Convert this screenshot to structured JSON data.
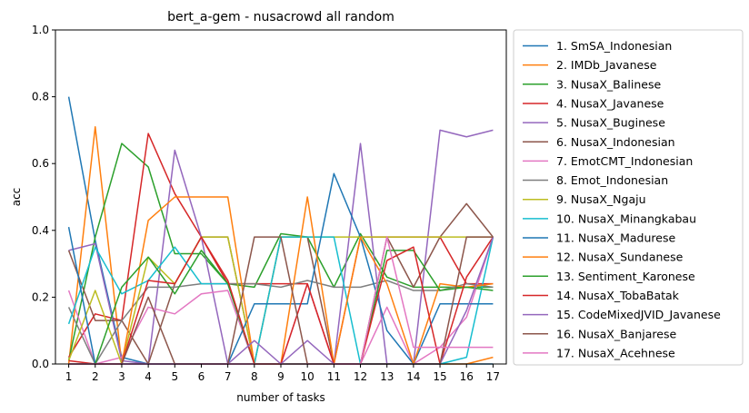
{
  "chart_data": {
    "type": "line",
    "title": "bert_a-gem - nusacrowd all random",
    "xlabel": "number of tasks",
    "ylabel": "acc",
    "x": [
      1,
      2,
      3,
      4,
      5,
      6,
      7,
      8,
      9,
      10,
      11,
      12,
      13,
      14,
      15,
      16,
      17
    ],
    "xlim": [
      0.5,
      17.5
    ],
    "ylim": [
      0,
      1
    ],
    "yticks": [
      "0.0",
      "0.2",
      "0.4",
      "0.6",
      "0.8",
      "1.0"
    ],
    "grid": false,
    "legend_position": "outside-right",
    "series": [
      {
        "name": "1. SmSA_Indonesian",
        "color": "#1f77b4",
        "values": [
          0.8,
          0.37,
          0.02,
          0.0,
          0.0,
          0.0,
          0.0,
          0.0,
          0.0,
          0.0,
          0.0,
          0.0,
          0.0,
          0.0,
          0.0,
          0.0,
          0.0
        ]
      },
      {
        "name": "2. IMDb_Javanese",
        "color": "#ff7f0e",
        "values": [
          0.0,
          0.71,
          0.0,
          0.0,
          0.0,
          0.0,
          0.0,
          0.0,
          0.0,
          0.0,
          0.0,
          0.0,
          0.0,
          0.0,
          0.0,
          0.0,
          0.02
        ]
      },
      {
        "name": "3. NusaX_Balinese",
        "color": "#2ca02c",
        "values": [
          0.01,
          0.38,
          0.66,
          0.59,
          0.33,
          0.33,
          0.24,
          0.23,
          0.39,
          0.38,
          0.23,
          0.39,
          0.26,
          0.23,
          0.23,
          0.23,
          0.23
        ]
      },
      {
        "name": "4. NusaX_Javanese",
        "color": "#d62728",
        "values": [
          0.02,
          0.15,
          0.13,
          0.69,
          0.51,
          0.38,
          0.24,
          0.24,
          0.24,
          0.24,
          0.0,
          0.38,
          0.38,
          0.38,
          0.38,
          0.24,
          0.24
        ]
      },
      {
        "name": "5. NusaX_Buginese",
        "color": "#9467bd",
        "values": [
          0.34,
          0.36,
          0.01,
          0.0,
          0.64,
          0.38,
          0.0,
          0.0,
          0.0,
          0.0,
          0.0,
          0.66,
          0.0,
          0.0,
          0.7,
          0.68,
          0.7
        ]
      },
      {
        "name": "6. NusaX_Indonesian",
        "color": "#8c564b",
        "values": [
          0.34,
          0.13,
          0.13,
          0.0,
          0.24,
          0.38,
          0.38,
          0.0,
          0.38,
          0.38,
          0.0,
          0.0,
          0.38,
          0.23,
          0.38,
          0.48,
          0.38
        ]
      },
      {
        "name": "7. EmotCMT_Indonesian",
        "color": "#e377c2",
        "values": [
          0.22,
          0.0,
          0.02,
          0.17,
          0.15,
          0.21,
          0.22,
          0.0,
          0.0,
          0.24,
          0.0,
          0.0,
          0.17,
          0.0,
          0.05,
          0.14,
          0.38
        ]
      },
      {
        "name": "8. Emot_Indonesian",
        "color": "#7f7f7f",
        "values": [
          0.17,
          0.0,
          0.13,
          0.23,
          0.23,
          0.24,
          0.24,
          0.24,
          0.23,
          0.25,
          0.23,
          0.23,
          0.25,
          0.22,
          0.22,
          0.24,
          0.23
        ]
      },
      {
        "name": "9. NusaX_Ngaju",
        "color": "#bcbd22",
        "values": [
          0.01,
          0.22,
          0.0,
          0.32,
          0.24,
          0.38,
          0.38,
          0.0,
          0.38,
          0.38,
          0.38,
          0.38,
          0.38,
          0.38,
          0.38,
          0.38,
          0.38
        ]
      },
      {
        "name": "10. NusaX_Minangkabau",
        "color": "#17becf",
        "values": [
          0.12,
          0.35,
          0.21,
          0.25,
          0.35,
          0.24,
          0.24,
          0.0,
          0.38,
          0.38,
          0.38,
          0.0,
          0.0,
          0.0,
          0.0,
          0.02,
          0.38
        ]
      },
      {
        "name": "11. NusaX_Madurese",
        "color": "#1f77b4",
        "values": [
          0.41,
          0.0,
          0.0,
          0.0,
          0.0,
          0.0,
          0.0,
          0.18,
          0.18,
          0.18,
          0.57,
          0.38,
          0.1,
          0.0,
          0.18,
          0.18,
          0.18
        ]
      },
      {
        "name": "12. NusaX_Sundanese",
        "color": "#ff7f0e",
        "values": [
          0.0,
          0.0,
          0.0,
          0.43,
          0.5,
          0.5,
          0.5,
          0.0,
          0.0,
          0.5,
          0.0,
          0.38,
          0.24,
          0.0,
          0.24,
          0.23,
          0.24
        ]
      },
      {
        "name": "13. Sentiment_Karonese",
        "color": "#2ca02c",
        "values": [
          0.0,
          0.0,
          0.23,
          0.32,
          0.21,
          0.34,
          0.24,
          0.0,
          0.0,
          0.0,
          0.0,
          0.0,
          0.34,
          0.34,
          0.22,
          0.23,
          0.22
        ]
      },
      {
        "name": "14. NusaX_TobaBatak",
        "color": "#d62728",
        "values": [
          0.01,
          0.0,
          0.0,
          0.25,
          0.24,
          0.38,
          0.25,
          0.0,
          0.0,
          0.24,
          0.0,
          0.0,
          0.31,
          0.35,
          0.0,
          0.26,
          0.38
        ]
      },
      {
        "name": "15. CodeMixedJVID_Javanese",
        "color": "#9467bd",
        "values": [
          0.0,
          0.0,
          0.0,
          0.0,
          0.0,
          0.0,
          0.0,
          0.07,
          0.0,
          0.07,
          0.0,
          0.0,
          0.0,
          0.0,
          0.0,
          0.16,
          0.38
        ]
      },
      {
        "name": "16. NusaX_Banjarese",
        "color": "#8c564b",
        "values": [
          0.0,
          0.0,
          0.0,
          0.2,
          0.0,
          0.0,
          0.0,
          0.38,
          0.38,
          0.0,
          0.0,
          0.0,
          0.0,
          0.0,
          0.0,
          0.38,
          0.38
        ]
      },
      {
        "name": "17. NusaX_Acehnese",
        "color": "#e377c2",
        "values": [
          0.0,
          0.0,
          0.0,
          0.0,
          0.0,
          0.0,
          0.0,
          0.0,
          0.0,
          0.0,
          0.0,
          0.0,
          0.38,
          0.05,
          0.05,
          0.05,
          0.05
        ]
      }
    ]
  }
}
